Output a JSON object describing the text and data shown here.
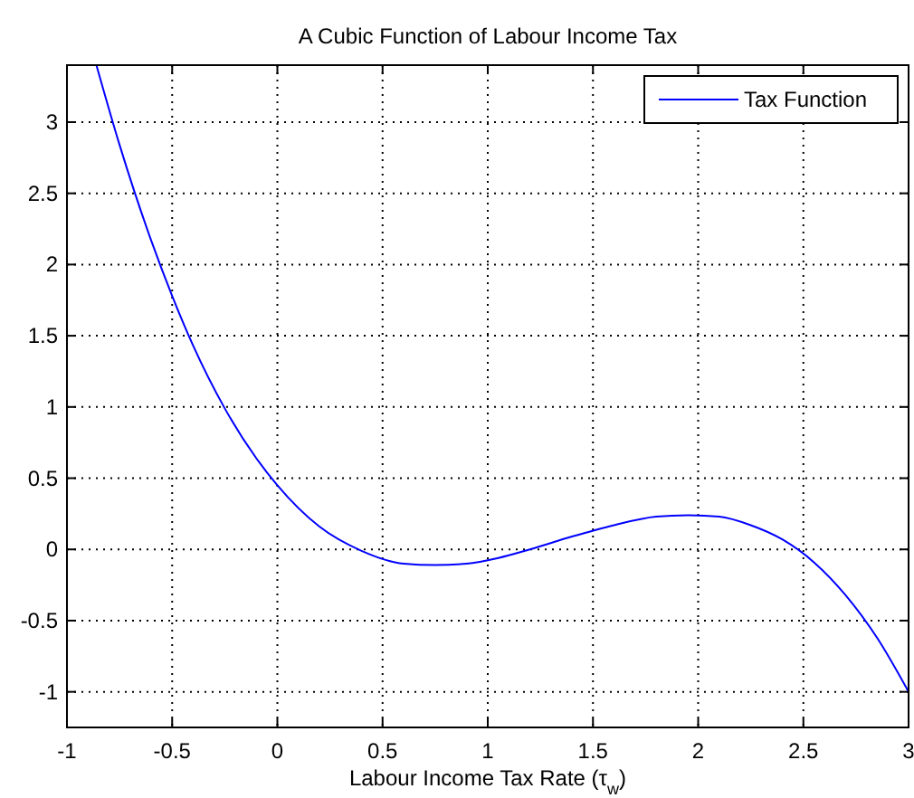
{
  "chart_data": {
    "type": "line",
    "title": "A Cubic Function of Labour Income Tax",
    "xlabel": "Labour Income Tax Rate (τ$_{w}$)",
    "x": [
      -0.86,
      -0.75,
      -0.6,
      -0.5,
      -0.4,
      -0.25,
      -0.1,
      0,
      0.2,
      0.4,
      0.6,
      0.75,
      0.9,
      1.05,
      1.2,
      1.4,
      1.6,
      1.8,
      1.95,
      2.1,
      2.25,
      2.4,
      2.55,
      2.7,
      2.85,
      3
    ],
    "series": [
      {
        "name": "Tax Function",
        "color": "#0000ff",
        "values": [
          3.4,
          2.84,
          2.17,
          1.78,
          1.43,
          0.99,
          0.64,
          0.45,
          0.16,
          -0.01,
          -0.1,
          -0.11,
          -0.1,
          -0.06,
          0,
          0.09,
          0.17,
          0.23,
          0.24,
          0.23,
          0.17,
          0.07,
          -0.09,
          -0.32,
          -0.62,
          -1
        ]
      }
    ],
    "xlim": [
      -1,
      3
    ],
    "ylim": [
      -1.25,
      3.4
    ],
    "xticks": [
      -1,
      -0.5,
      0,
      0.5,
      1,
      1.5,
      2,
      2.5,
      3
    ],
    "yticks": [
      -1,
      -0.5,
      0,
      0.5,
      1,
      1.5,
      2,
      2.5,
      3
    ],
    "grid": true,
    "legend": "top right",
    "marker": "none",
    "line_style": "solid"
  }
}
